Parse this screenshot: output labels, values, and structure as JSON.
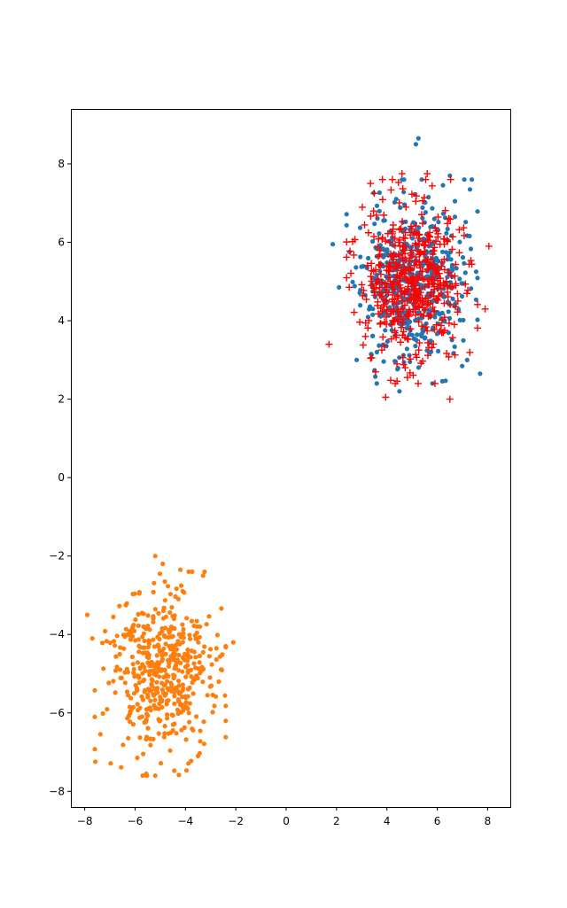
{
  "chart_data": {
    "type": "scatter",
    "title": "",
    "xlabel": "",
    "ylabel": "",
    "xlim": [
      -8.55,
      8.9
    ],
    "ylim": [
      -8.4,
      9.4
    ],
    "grid": false,
    "legend": "none",
    "x_ticks": [
      -8,
      -6,
      -4,
      -2,
      0,
      2,
      4,
      6,
      8
    ],
    "y_ticks": [
      -8,
      -6,
      -4,
      -2,
      0,
      2,
      4,
      6,
      8
    ],
    "series": [
      {
        "marker": "dot",
        "color": "#1f77b4",
        "count": 500,
        "center": [
          5.0,
          5.0
        ],
        "std": [
          1.0,
          1.0
        ],
        "seed": 11,
        "points": [
          [
            5.25,
            8.65
          ],
          [
            5.15,
            8.5
          ],
          [
            1.85,
            5.95
          ],
          [
            2.1,
            4.85
          ],
          [
            7.7,
            2.65
          ],
          [
            6.5,
            7.7
          ],
          [
            7.3,
            7.35
          ],
          [
            2.8,
            3.0
          ],
          [
            3.6,
            3.2
          ],
          [
            4.5,
            2.2
          ]
        ]
      },
      {
        "marker": "dot",
        "color": "#ff7f0e",
        "count": 500,
        "center": [
          -5.0,
          -5.0
        ],
        "std": [
          1.0,
          1.0
        ],
        "seed": 23,
        "points": [
          [
            -5.2,
            -2.0
          ],
          [
            -4.9,
            -2.2
          ],
          [
            -4.2,
            -2.35
          ],
          [
            -3.3,
            -2.5
          ],
          [
            -2.1,
            -4.2
          ],
          [
            -7.9,
            -3.5
          ],
          [
            -7.7,
            -4.1
          ],
          [
            -5.7,
            -7.6
          ],
          [
            -5.2,
            -7.6
          ],
          [
            -3.5,
            -7.1
          ]
        ]
      },
      {
        "marker": "plus",
        "color": "#ff0000",
        "count": 500,
        "center": [
          5.0,
          5.0
        ],
        "std": [
          1.0,
          1.0
        ],
        "seed": 37,
        "points": [
          [
            1.7,
            3.4
          ],
          [
            3.95,
            2.05
          ],
          [
            6.5,
            2.0
          ],
          [
            8.05,
            5.9
          ],
          [
            7.9,
            4.3
          ],
          [
            4.6,
            7.75
          ],
          [
            5.6,
            7.75
          ],
          [
            3.35,
            7.5
          ]
        ]
      }
    ]
  }
}
